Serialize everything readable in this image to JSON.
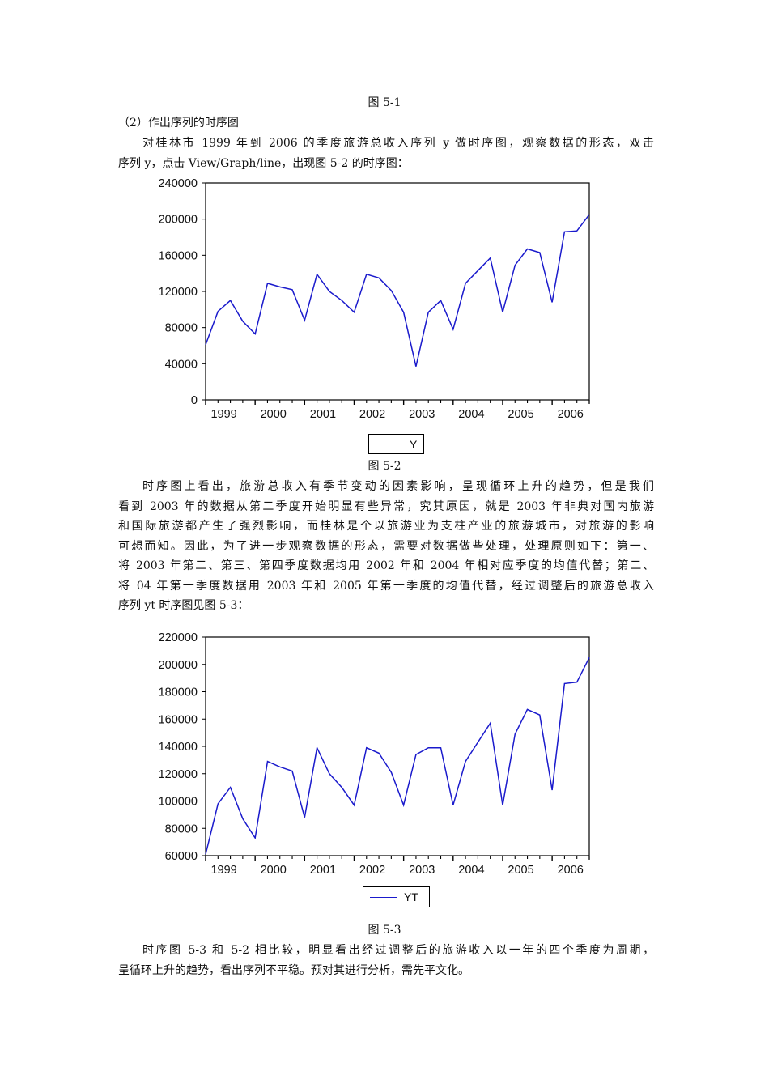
{
  "document": {
    "fig_5_1_caption": "图 5-1",
    "section_heading": "（2）作出序列的时序图",
    "intro_paragraph": {
      "lines": [
        "对桂林市 1999 年到 2006 的季度旅游总收入序列 y 做时序图，观察数据的形态，双击",
        "序列 y，点击 View/Graph/line，出现图 5-2 的时序图："
      ]
    },
    "fig_5_2_caption": "图 5-2",
    "analysis_paragraph": {
      "lines": [
        "时序图上看出，旅游总收入有季节变动的因素影响，呈现循环上升的趋势，但是我们",
        "看到 2003 年的数据从第二季度开始明显有些异常，究其原因，就是 2003 年非典对国内旅游",
        "和国际旅游都产生了强烈影响，而桂林是个以旅游业为支柱产业的旅游城市，对旅游的影响",
        "可想而知。因此，为了进一步观察数据的形态，需要对数据做些处理，处理原则如下：第一、",
        "将 2003 年第二、第三、第四季度数据均用 2002 年和 2004 年相对应季度的均值代替；第二、",
        "将 04 年第一季度数据用 2003 年和 2005 年第一季度的均值代替，经过调整后的旅游总收入",
        "序列 yt 时序图见图 5-3："
      ]
    },
    "fig_5_3_caption": "图 5-3",
    "conclusion_paragraph": {
      "lines": [
        "时序图 5-3 和 5-2 相比较，明显看出经过调整后的旅游收入以一年的四个季度为周期，",
        "呈循环上升的趋势，看出序列不平稳。预对其进行分析，需先平文化。"
      ]
    }
  },
  "colors": {
    "series_line": "#1a1acc",
    "axis": "#000000",
    "text": "#111111"
  },
  "chart_data": [
    {
      "type": "line",
      "title": "",
      "figure": "图 5-2",
      "xlabel": "",
      "ylabel": "",
      "x_tick_labels": [
        "1999",
        "2000",
        "2001",
        "2002",
        "2003",
        "2004",
        "2005",
        "2006"
      ],
      "y_ticks": [
        0,
        40000,
        80000,
        120000,
        160000,
        200000,
        240000
      ],
      "y_tick_labels": [
        "0",
        "40000",
        "80000",
        "120000",
        "160000",
        "200000",
        "240000"
      ],
      "ylim": [
        0,
        240000
      ],
      "grid": false,
      "legend": {
        "position": "bottom-center",
        "entries": [
          "Y"
        ]
      },
      "frequency": "quarterly",
      "x": [
        "1999Q1",
        "1999Q2",
        "1999Q3",
        "1999Q4",
        "2000Q1",
        "2000Q2",
        "2000Q3",
        "2000Q4",
        "2001Q1",
        "2001Q2",
        "2001Q3",
        "2001Q4",
        "2002Q1",
        "2002Q2",
        "2002Q3",
        "2002Q4",
        "2003Q1",
        "2003Q2",
        "2003Q3",
        "2003Q4",
        "2004Q1",
        "2004Q2",
        "2004Q3",
        "2004Q4",
        "2005Q1",
        "2005Q2",
        "2005Q3",
        "2005Q4",
        "2006Q1",
        "2006Q2",
        "2006Q3",
        "2006Q4"
      ],
      "series": [
        {
          "name": "Y",
          "values": [
            61000,
            98000,
            110000,
            87000,
            73000,
            129000,
            125000,
            122000,
            88000,
            139000,
            120000,
            110000,
            97000,
            139000,
            135000,
            121000,
            97000,
            37000,
            97000,
            110000,
            78000,
            129000,
            143000,
            157000,
            97000,
            149000,
            167000,
            163000,
            108000,
            186000,
            187000,
            205000
          ]
        }
      ]
    },
    {
      "type": "line",
      "title": "",
      "figure": "图 5-3",
      "xlabel": "",
      "ylabel": "",
      "x_tick_labels": [
        "1999",
        "2000",
        "2001",
        "2002",
        "2003",
        "2004",
        "2005",
        "2006"
      ],
      "y_ticks": [
        60000,
        80000,
        100000,
        120000,
        140000,
        160000,
        180000,
        200000,
        220000
      ],
      "y_tick_labels": [
        "60000",
        "80000",
        "100000",
        "120000",
        "140000",
        "160000",
        "180000",
        "200000",
        "220000"
      ],
      "ylim": [
        60000,
        220000
      ],
      "grid": false,
      "legend": {
        "position": "bottom-center",
        "entries": [
          "YT"
        ]
      },
      "frequency": "quarterly",
      "x": [
        "1999Q1",
        "1999Q2",
        "1999Q3",
        "1999Q4",
        "2000Q1",
        "2000Q2",
        "2000Q3",
        "2000Q4",
        "2001Q1",
        "2001Q2",
        "2001Q3",
        "2001Q4",
        "2002Q1",
        "2002Q2",
        "2002Q3",
        "2002Q4",
        "2003Q1",
        "2003Q2",
        "2003Q3",
        "2003Q4",
        "2004Q1",
        "2004Q2",
        "2004Q3",
        "2004Q4",
        "2005Q1",
        "2005Q2",
        "2005Q3",
        "2005Q4",
        "2006Q1",
        "2006Q2",
        "2006Q3",
        "2006Q4"
      ],
      "series": [
        {
          "name": "YT",
          "values": [
            61000,
            98000,
            110000,
            87000,
            73000,
            129000,
            125000,
            122000,
            88000,
            139000,
            120000,
            110000,
            97000,
            139000,
            135000,
            121000,
            97000,
            134000,
            139000,
            139000,
            97000,
            129000,
            143000,
            157000,
            97000,
            149000,
            167000,
            163000,
            108000,
            186000,
            187000,
            205000
          ]
        }
      ]
    }
  ]
}
